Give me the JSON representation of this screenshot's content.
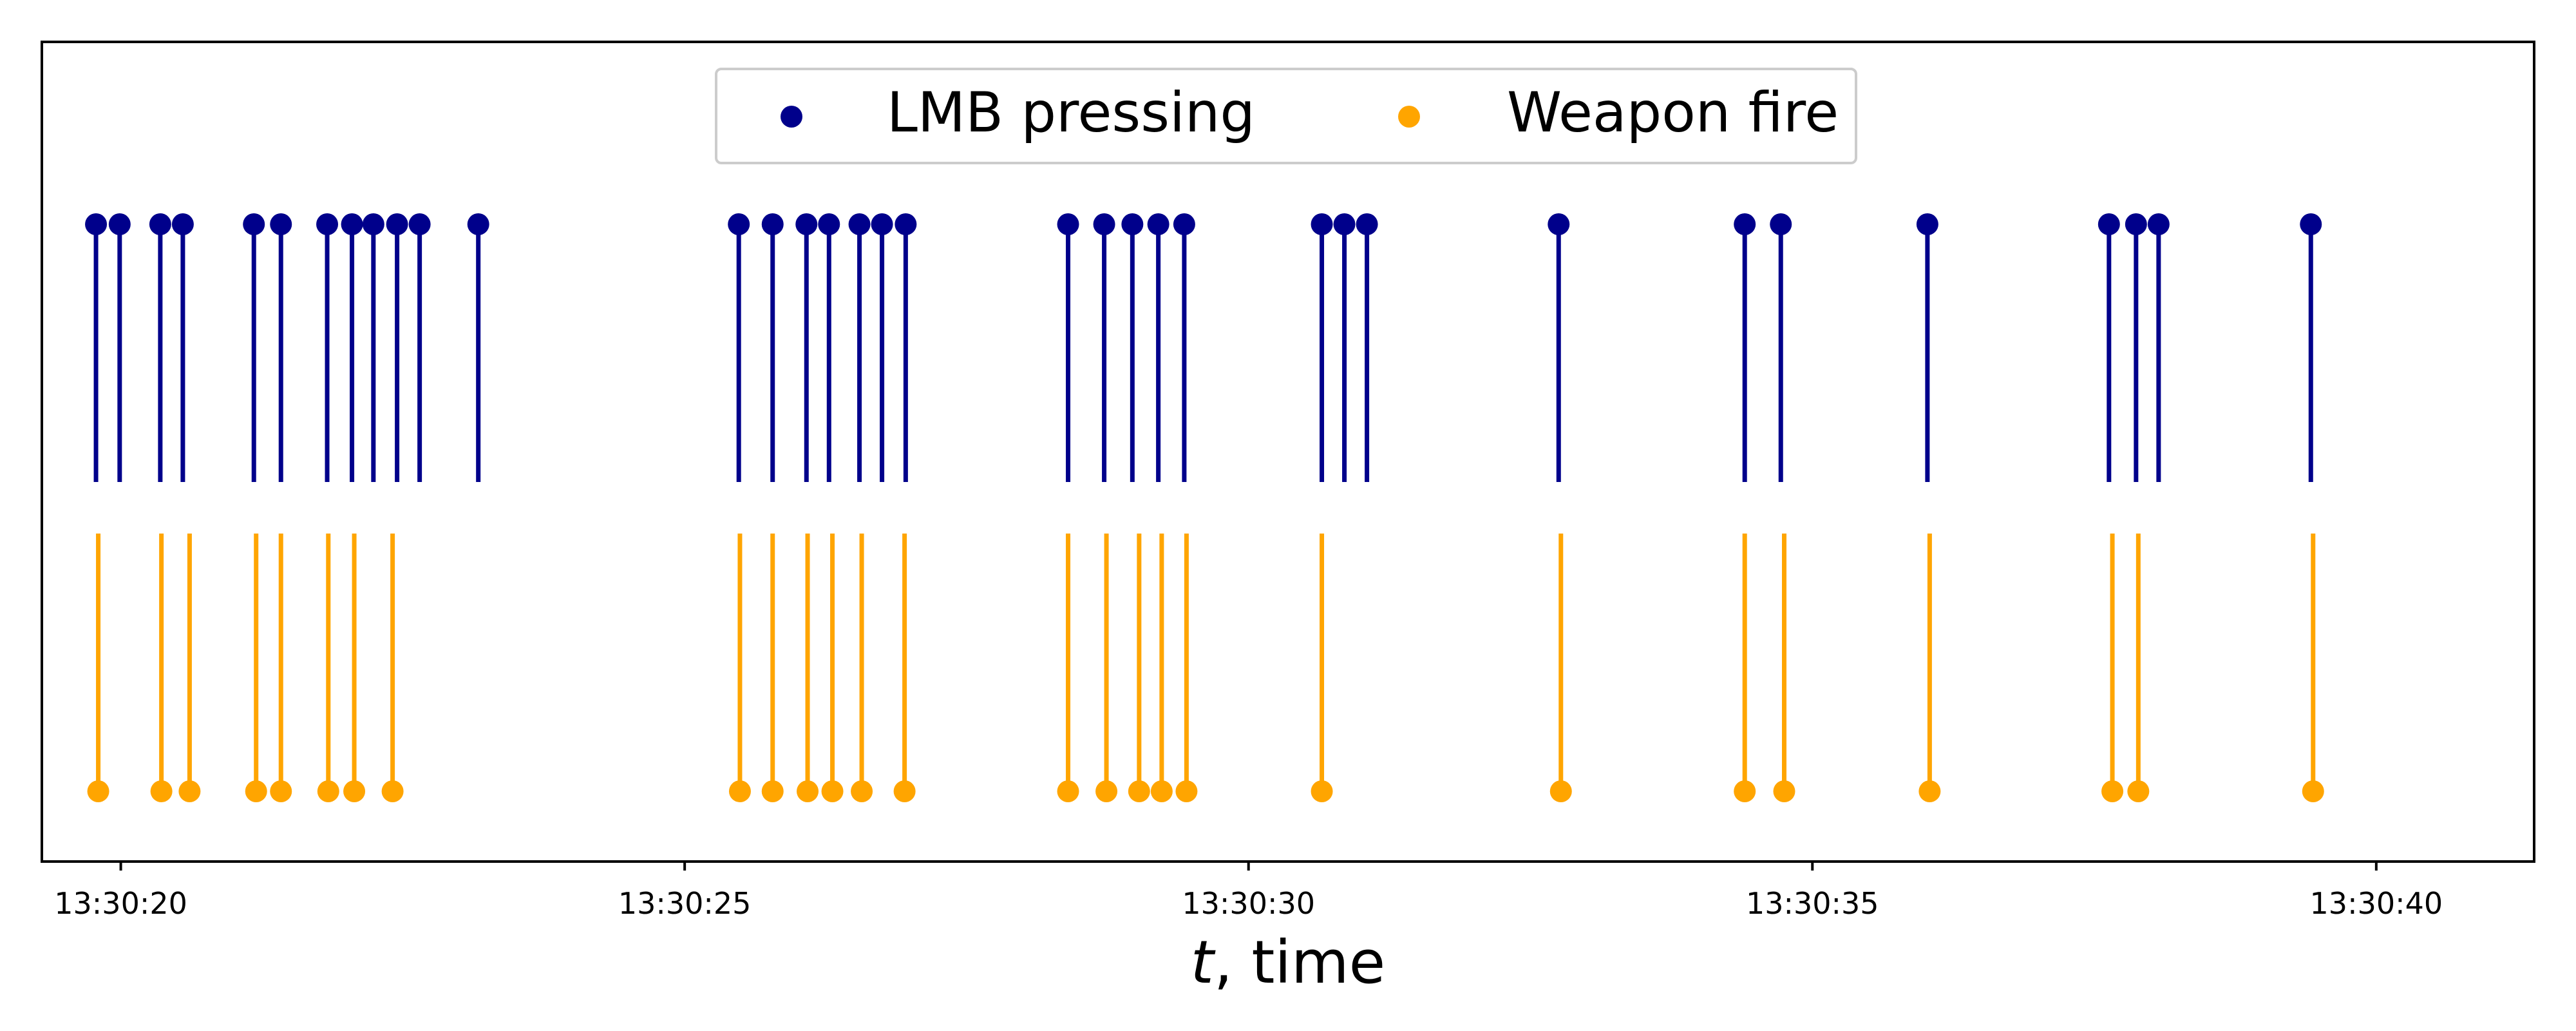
{
  "chart_data": {
    "type": "scatter",
    "title": "",
    "xlabel_var": "t",
    "xlabel_rest": ", time",
    "ylabel": "",
    "x_axis": {
      "type": "time",
      "range": [
        "13:30:19.3",
        "13:30:41.4"
      ],
      "ticks": [
        "13:30:20",
        "13:30:25",
        "13:30:30",
        "13:30:35",
        "13:30:40"
      ]
    },
    "grid": false,
    "legend_position": "top-center",
    "series": [
      {
        "name": "LMB pressing",
        "color": "#00008b",
        "style": "stem-down",
        "level": "upper",
        "x": [
          "13:30:19.78",
          "13:30:19.99",
          "13:30:20.35",
          "13:30:20.55",
          "13:30:21.18",
          "13:30:21.42",
          "13:30:21.83",
          "13:30:22.05",
          "13:30:22.24",
          "13:30:22.45",
          "13:30:22.65",
          "13:30:23.17",
          "13:30:25.48",
          "13:30:25.78",
          "13:30:26.08",
          "13:30:26.28",
          "13:30:26.55",
          "13:30:26.75",
          "13:30:26.96",
          "13:30:28.40",
          "13:30:28.72",
          "13:30:28.97",
          "13:30:29.20",
          "13:30:29.43",
          "13:30:30.65",
          "13:30:30.85",
          "13:30:31.05",
          "13:30:32.75",
          "13:30:34.40",
          "13:30:34.72",
          "13:30:36.02",
          "13:30:37.63",
          "13:30:37.87",
          "13:30:38.07",
          "13:30:39.42"
        ]
      },
      {
        "name": "Weapon fire",
        "color": "#ffa500",
        "style": "stem-up",
        "level": "lower",
        "x": [
          "13:30:19.80",
          "13:30:20.36",
          "13:30:20.61",
          "13:30:21.20",
          "13:30:21.42",
          "13:30:21.84",
          "13:30:22.07",
          "13:30:22.41",
          "13:30:25.49",
          "13:30:25.78",
          "13:30:26.09",
          "13:30:26.31",
          "13:30:26.57",
          "13:30:26.95",
          "13:30:28.40",
          "13:30:28.74",
          "13:30:29.03",
          "13:30:29.23",
          "13:30:29.45",
          "13:30:30.65",
          "13:30:32.77",
          "13:30:34.40",
          "13:30:34.75",
          "13:30:36.04",
          "13:30:37.66",
          "13:30:37.89",
          "13:30:39.44"
        ]
      }
    ]
  }
}
